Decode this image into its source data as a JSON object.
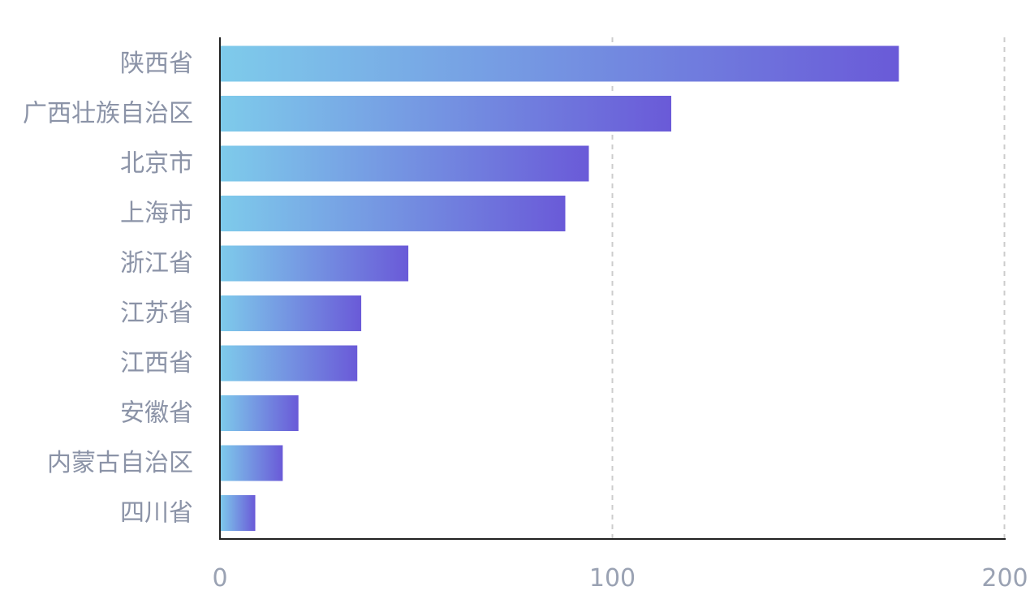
{
  "chart_data": {
    "type": "bar",
    "orientation": "horizontal",
    "categories": [
      "陕西省",
      "广西壮族自治区",
      "北京市",
      "上海市",
      "浙江省",
      "江苏省",
      "江西省",
      "安徽省",
      "内蒙古自治区",
      "四川省"
    ],
    "values": [
      173,
      115,
      94,
      88,
      48,
      36,
      35,
      20,
      16,
      9
    ],
    "xlim": [
      0,
      200
    ],
    "xticks": [
      0,
      100,
      200
    ],
    "xtick_labels": [
      "0",
      "100",
      "200"
    ],
    "grid": "vertical dashed",
    "colors": {
      "bar_gradient_start": "#7ecbeb",
      "bar_gradient_end": "#6a5ad8",
      "axis": "#222222",
      "grid": "#cccccc",
      "category_label": "#8b93a7",
      "tick_label": "#9aa2b3"
    }
  }
}
